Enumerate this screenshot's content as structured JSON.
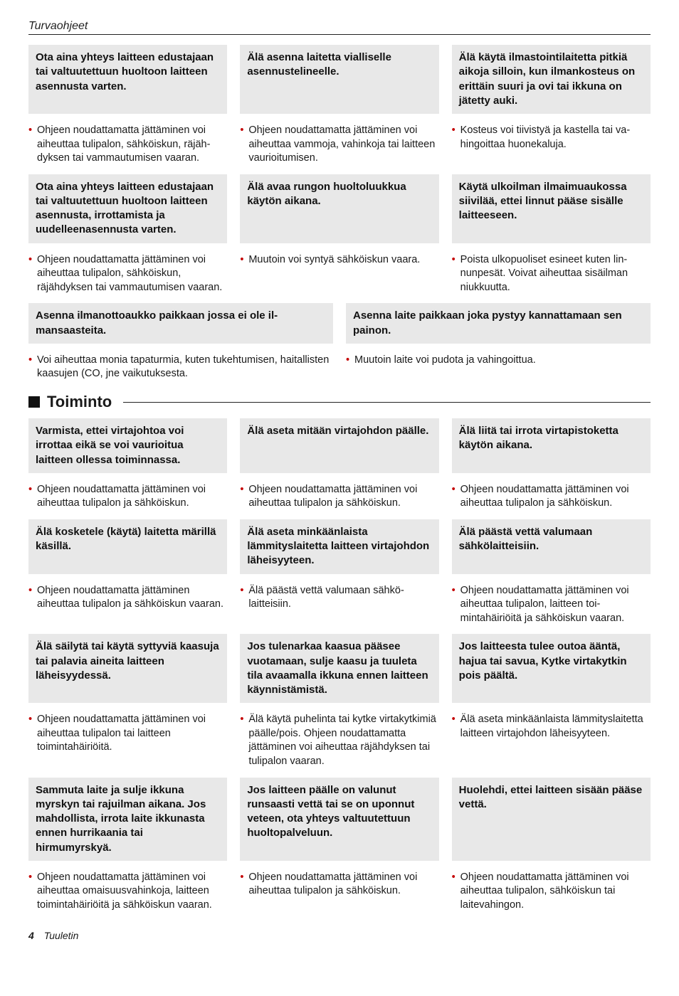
{
  "page_top": "Turvaohjeet",
  "footer_page": "4",
  "footer_name": "Tuuletin",
  "block1": {
    "r1": {
      "a": "Ota aina yhteys laitteen edusta­jaan tai valtuutettuun huoltoon laitteen asennusta varten.",
      "b": "Älä asenna laitetta vialliselle asennustelineelle.",
      "c": "Älä käytä ilmastointilaitetta pitkiä aikoja silloin, kun ilmankosteus on erittäin suuri ja ovi tai ikkuna on jätetty auki."
    },
    "r2": {
      "a": "Ohjeen noudattamatta jättäminen voi aiheuttaa tulipalon, sähköiskun, räjäh­dyksen tai vammautumisen vaaran.",
      "b": "Ohjeen noudattamatta jättäminen voi aiheuttaa vammoja, vahinkoja tai lait­teen vaurioitumisen.",
      "c": "Kosteus voi tiivistyä ja kastella tai va­hingoittaa huonekaluja."
    },
    "r3": {
      "a": "Ota aina yhteys laitteen edusta­jaan tai valtuutettuun huoltoon laitteen asennusta, irrottamista ja uudelleenasennusta varten.",
      "b": "Älä avaa rungon huoltoluukkua käytön aikana.",
      "c": "Käytä ulkoilman ilmaimuau­kossa siivilää, ettei linnut pääse sisälle laitteeseen."
    },
    "r4": {
      "a": "Ohjeen noudattamatta jättäminen voi aiheuttaa tulipalon, sähköiskun, räjähdyksen tai vammautumisen vaaran.",
      "b": "Muutoin voi syntyä sähköiskun vaara.",
      "c": "Poista ulkopuoliset esineet kuten lin­nunpesät. Voivat aiheuttaa sisäilman niukkuutta."
    },
    "r5": {
      "a": "Asenna ilmanottoaukko paikkaan jossa ei ole il­mansaasteita.",
      "b": "Asenna laite paikkaan joka pystyy kannattamaan sen painon."
    },
    "r6": {
      "a": "Voi aiheuttaa monia tapaturmia, kuten tukehtumisen, hai­tallisten kaasujen (CO, jne vaikutuksesta.",
      "b": "Muutoin laite voi pudota ja vahingoittua."
    }
  },
  "section_title": "Toiminto",
  "block2": {
    "r1": {
      "a": "Varmista, ettei virtajohtoa voi irrottaa eikä se voi vaurioitua laitteen ollessa toiminnassa.",
      "b": "Älä aseta mitään virtajoh­don päälle.",
      "c": "Älä liitä tai irrota virtapisto­ketta käytön aikana."
    },
    "r2": {
      "a": "Ohjeen noudattamatta jättämi­nen voi aiheuttaa tulipalon ja sähköiskun.",
      "b": "Ohjeen noudattamatta jättämi­nen voi aiheuttaa tulipalon ja sähköiskun.",
      "c": "Ohjeen noudattamatta jättäminen voi aiheuttaa tulipalon ja sähköis­kun."
    },
    "r3": {
      "a": "Älä kosketele (käytä) lai­tetta märillä käsillä.",
      "b": "Älä aseta minkäänlaista lämmityslaitetta laitteen vir­tajohdon läheisyyteen.",
      "c": "Älä päästä vettä valumaan sähkölaitteisiin."
    },
    "r4": {
      "a": "Ohjeen noudattamatta jättäminen aiheuttaa tulipalon ja sähköiskun vaaran.",
      "b": "Älä päästä vettä valumaan sähkö­laitteisiin.",
      "c": "Ohjeen noudattamatta jättäminen voi aiheuttaa tulipalon, laitteen toi­mintahäiriöitä ja sähköiskun vaaran."
    },
    "r5": {
      "a": "Älä säilytä tai käytä syttyviä kaasuja tai palavia aineita laitteen läheisyydessä.",
      "b": "Jos tulenarkaa kaasua pääsee vuotamaan, sulje kaasu ja tuu­leta tila avaamalla ikkuna ennen laitteen käynnistämistä.",
      "c": "Jos laitteesta tulee outoa ääntä, hajua tai savua, Kytke virtakytkin pois päältä."
    },
    "r6": {
      "a": "Ohjeen noudattamatta jättäminen voi aiheuttaa tulipalon tai laitteen toimintahäiriöitä.",
      "b": "Älä käytä puhelinta tai kytke virta­kytkimiä päälle/pois. Ohjeen nou­dattamatta jättäminen voi aiheuttaa räjähdyksen tai tulipalon vaaran.",
      "c": "Älä aseta minkäänlaista lämmitys­laitetta laitteen virtajohdon lähei­syyteen."
    },
    "r7": {
      "a": "Sammuta laite ja sulje ikkuna myrskyn tai rajuilman aikana. Jos mahdollista, irrota laite ikkunasta ennen hurrikaania tai hirmumyrskyä.",
      "b": "Jos laitteen päälle on valu­nut runsaasti vettä tai se on uponnut veteen, ota yhteys valtuutettuun huoltopalve­luun.",
      "c": "Huolehdi, ettei laitteen si­sään pääse vettä."
    },
    "r8": {
      "a": "Ohjeen noudattamatta jättäminen voi aiheuttaa omaisuusvahinkoja, laitteen toimintahäiriöitä ja säh­köiskun vaaran.",
      "b": "Ohjeen noudattamatta jättäminen voi aiheuttaa tulipalon ja sähköis­kun.",
      "c": "Ohjeen noudattamatta jättäminen voi aiheuttaa tulipalon, sähköis­kun tai laitevahingon."
    }
  }
}
